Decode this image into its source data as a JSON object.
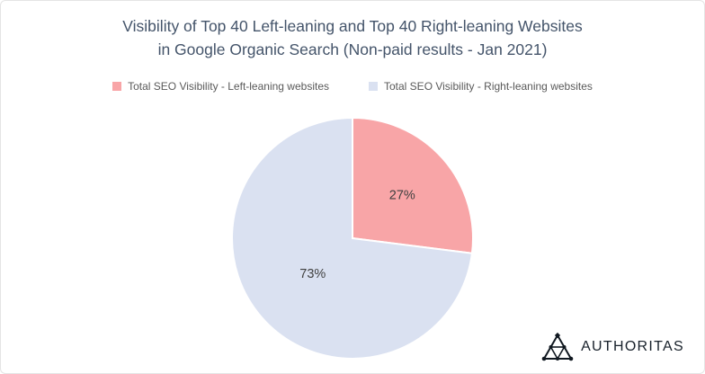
{
  "title": {
    "line1": "Visibility of Top 40 Left-leaning and Top 40 Right-leaning Websites",
    "line2": "in Google Organic Search (Non-paid results - Jan 2021)"
  },
  "chart_data": {
    "type": "pie",
    "title": "Visibility of Top 40 Left-leaning and Top 40 Right-leaning Websites in Google Organic Search (Non-paid results - Jan 2021)",
    "slices": [
      {
        "name": "Total SEO Visibility - Left-leaning websites",
        "value": 27,
        "label": "27%",
        "color": "#F8A5A7"
      },
      {
        "name": "Total SEO Visibility - Right-leaning websites",
        "value": 73,
        "label": "73%",
        "color": "#DAE1F1"
      }
    ],
    "start_angle_deg": 0,
    "direction": "clockwise",
    "legend_position": "top",
    "label_color": "#404040"
  },
  "logo": {
    "text": "AUTHORITAS"
  },
  "colors": {
    "title": "#44546A",
    "legend_text": "#595959",
    "background": "#FFFFFF",
    "border": "#E4E4E4"
  }
}
